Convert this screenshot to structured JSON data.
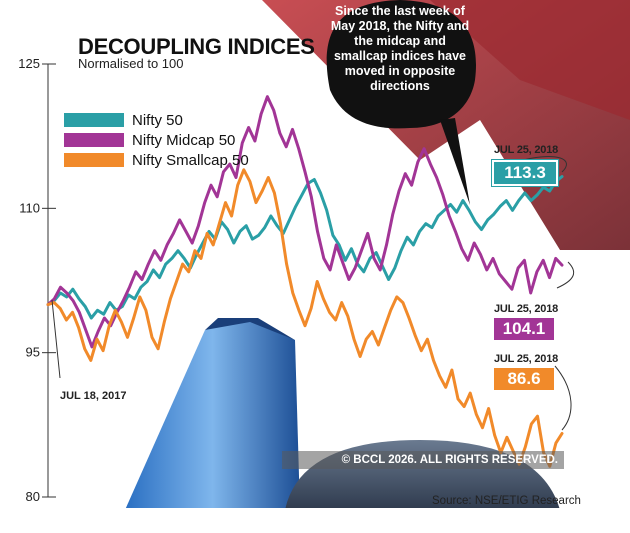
{
  "chart_data": {
    "type": "line",
    "title": "DECOUPLING INDICES",
    "subtitle": "Normalised to 100",
    "ylim": [
      80,
      125
    ],
    "yticks": [
      {
        "value": 125,
        "label": "125"
      },
      {
        "value": 110,
        "label": "110"
      },
      {
        "value": 95,
        "label": "95"
      },
      {
        "value": 80,
        "label": "80"
      }
    ],
    "x_start_label": "JUL 18, 2017",
    "legend_position": "top-left",
    "series": [
      {
        "name": "Nifty 50",
        "color": "#2a9fa6",
        "end_date": "JUL 25, 2018",
        "end_label": "113.3",
        "values": [
          100,
          100.4,
          101.2,
          100.8,
          101.6,
          100.6,
          99.8,
          98.6,
          99.4,
          99.0,
          100.2,
          99.4,
          99.8,
          101.0,
          100.6,
          101.8,
          102.4,
          103.6,
          102.8,
          104.2,
          104.8,
          105.6,
          104.8,
          103.8,
          105.2,
          106.4,
          107.6,
          106.8,
          108.6,
          107.8,
          106.4,
          107.6,
          108.2,
          106.8,
          107.2,
          108.0,
          109.2,
          108.2,
          107.4,
          108.8,
          110.2,
          111.4,
          112.6,
          113.0,
          111.6,
          109.8,
          107.2,
          106.2,
          104.6,
          105.8,
          104.2,
          103.4,
          104.8,
          105.4,
          104.0,
          102.6,
          103.8,
          105.6,
          107.0,
          106.2,
          107.6,
          108.4,
          108.0,
          109.2,
          109.8,
          110.4,
          109.6,
          110.8,
          109.8,
          108.6,
          107.8,
          108.8,
          109.4,
          110.2,
          110.8,
          109.8,
          110.8,
          111.6,
          110.8,
          111.4,
          112.2,
          111.8,
          112.8,
          113.3
        ]
      },
      {
        "name": "Nifty Midcap 50",
        "color": "#a23596",
        "end_date": "JUL 25, 2018",
        "end_label": "104.1",
        "values": [
          100,
          100.6,
          101.8,
          101.2,
          100.4,
          99.2,
          97.4,
          95.6,
          97.2,
          98.6,
          97.8,
          99.2,
          100.4,
          101.8,
          103.4,
          102.6,
          104.2,
          105.6,
          104.6,
          106.2,
          107.4,
          108.8,
          107.6,
          106.4,
          108.2,
          110.6,
          112.4,
          111.2,
          113.8,
          114.6,
          113.2,
          116.8,
          118.4,
          117.0,
          119.8,
          121.6,
          120.2,
          117.8,
          116.4,
          118.2,
          116.2,
          113.8,
          111.2,
          107.6,
          104.8,
          103.6,
          106.2,
          104.4,
          102.6,
          103.8,
          105.6,
          107.4,
          104.8,
          103.6,
          106.2,
          109.4,
          111.8,
          113.6,
          112.4,
          114.8,
          116.2,
          114.6,
          113.2,
          111.4,
          109.2,
          107.6,
          105.8,
          104.6,
          106.4,
          105.2,
          103.6,
          104.8,
          103.2,
          102.4,
          101.6,
          103.8,
          104.6,
          101.2,
          103.4,
          104.6,
          102.8,
          104.8,
          104.1
        ]
      },
      {
        "name": "Nifty Smallcap 50",
        "color": "#f18a2a",
        "end_date": "JUL 25, 2018",
        "end_label": "86.6",
        "values": [
          100,
          100.2,
          99.6,
          98.4,
          99.2,
          97.6,
          95.4,
          94.2,
          96.4,
          95.2,
          97.8,
          99.4,
          98.2,
          96.6,
          98.6,
          100.8,
          99.4,
          96.6,
          95.4,
          98.2,
          100.6,
          102.4,
          104.2,
          103.4,
          105.6,
          104.8,
          107.4,
          106.2,
          108.4,
          110.6,
          109.2,
          112.4,
          114.0,
          112.8,
          110.6,
          111.8,
          113.2,
          111.6,
          108.4,
          104.2,
          101.2,
          99.4,
          97.8,
          99.6,
          102.4,
          100.6,
          99.2,
          98.4,
          100.2,
          98.8,
          96.4,
          94.6,
          96.4,
          97.2,
          95.8,
          97.6,
          99.4,
          100.8,
          100.2,
          98.6,
          96.8,
          95.2,
          96.4,
          94.2,
          92.6,
          91.4,
          93.2,
          90.2,
          89.4,
          90.8,
          88.6,
          87.2,
          89.2,
          86.4,
          84.6,
          86.2,
          84.8,
          83.4,
          85.2,
          87.6,
          88.4,
          84.6,
          83.2,
          85.6,
          86.6
        ]
      }
    ],
    "annotation": "Since the last week of May 2018, the Nifty and the midcap and smallcap indices have moved in opposite directions"
  },
  "copyright": "© BCCL 2026. ALL RIGHTS RESERVED.",
  "source": "Source: NSE/ETIG Research"
}
